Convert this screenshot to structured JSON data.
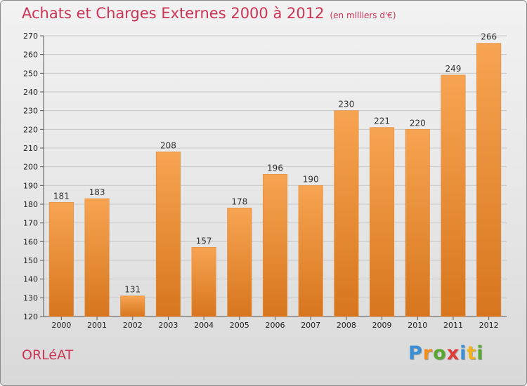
{
  "title": "Achats et Charges Externes 2000 à 2012",
  "subtitle": "(en milliers d'€)",
  "city": "ORLéAT",
  "logo": {
    "letters": [
      "P",
      "r",
      "o",
      "x",
      "i",
      "t",
      "i"
    ],
    "colors": [
      "#3a8fd6",
      "#f28c1e",
      "#5aa832",
      "#e23b3b",
      "#3a8fd6",
      "#f2b21e",
      "#5aa832"
    ]
  },
  "colors": {
    "bar_top": "#f7a452",
    "bar_bottom": "#d7761e",
    "title": "#cc3355"
  },
  "chart_data": {
    "type": "bar",
    "title": "Achats et Charges Externes 2000 à 2012",
    "subtitle": "(en milliers d'€)",
    "categories": [
      "2000",
      "2001",
      "2002",
      "2003",
      "2004",
      "2005",
      "2006",
      "2007",
      "2008",
      "2009",
      "2010",
      "2011",
      "2012"
    ],
    "values": [
      181,
      183,
      131,
      208,
      157,
      178,
      196,
      190,
      230,
      221,
      220,
      249,
      266
    ],
    "ylim": [
      120,
      270
    ],
    "yticks": [
      120,
      130,
      140,
      150,
      160,
      170,
      180,
      190,
      200,
      210,
      220,
      230,
      240,
      250,
      260,
      270
    ],
    "grid": true,
    "xlabel": "",
    "ylabel": ""
  }
}
